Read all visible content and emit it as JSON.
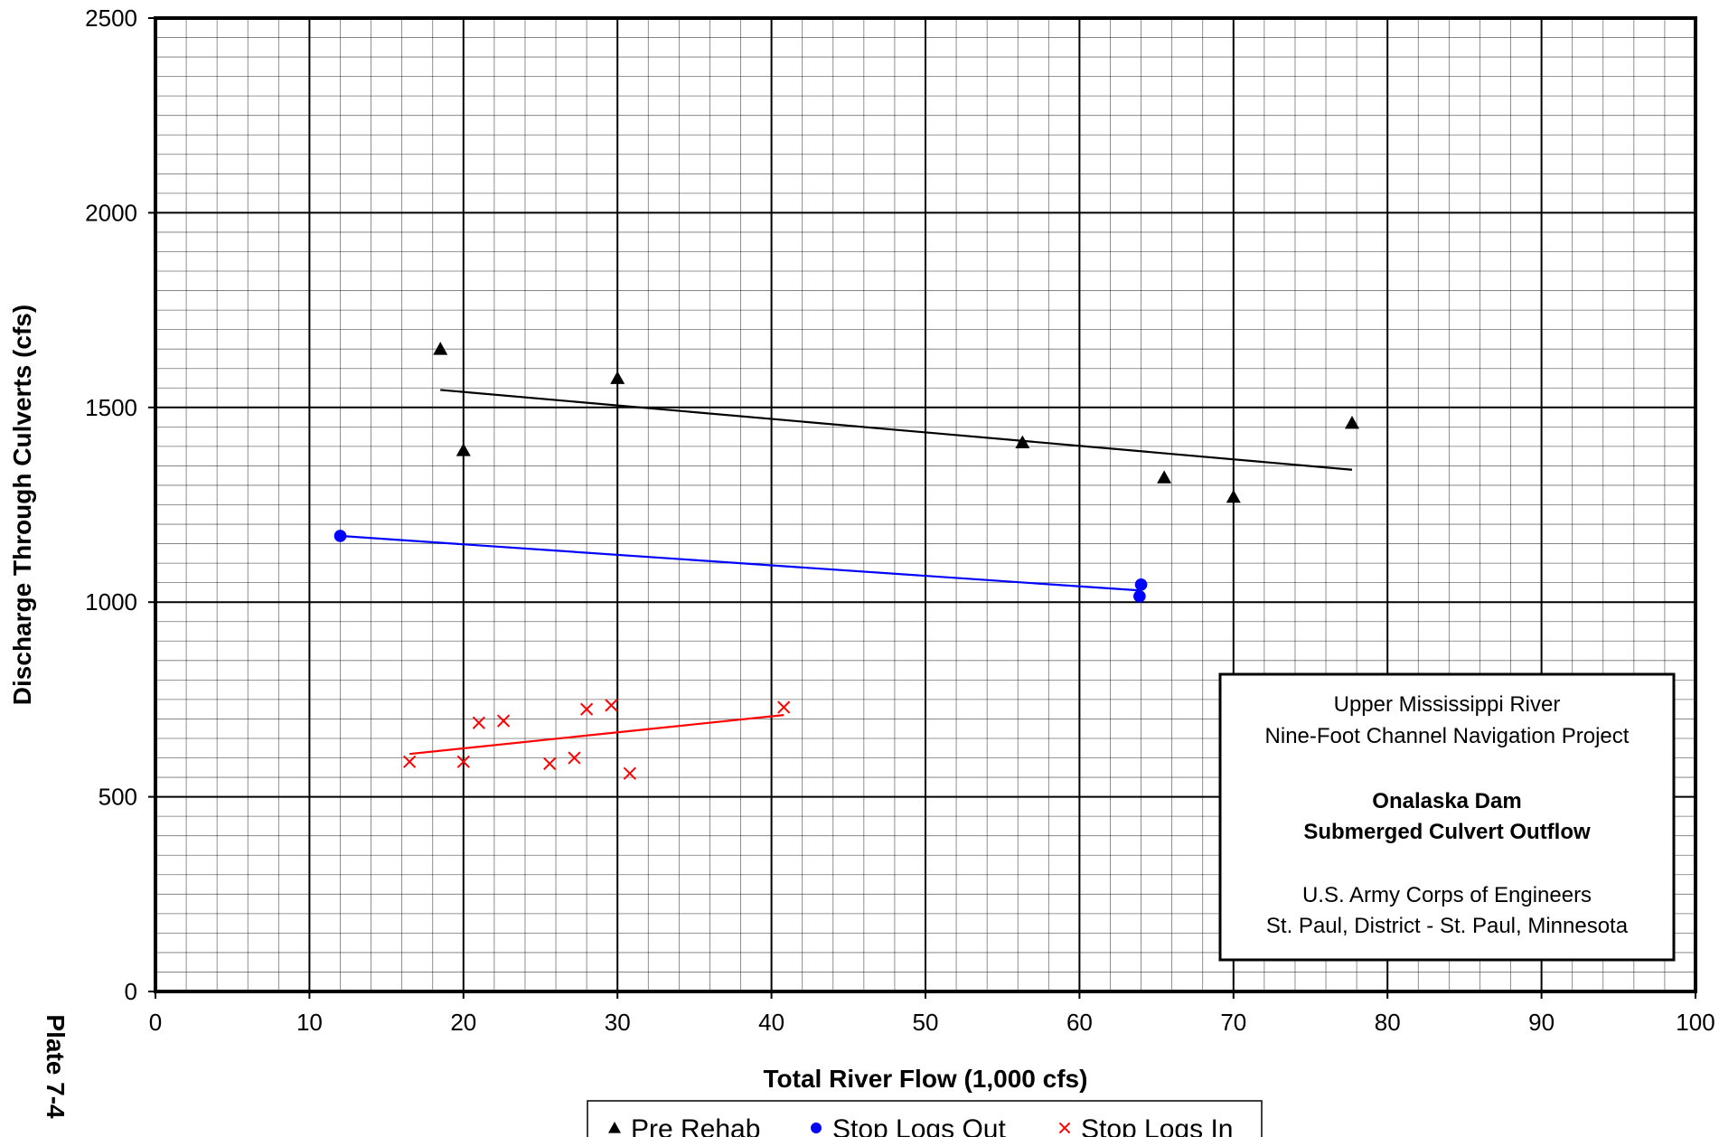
{
  "chart_data": {
    "type": "scatter",
    "xlabel": "Total River Flow  (1,000 cfs)",
    "ylabel": "Discharge Through Culverts (cfs)",
    "xlim": [
      0,
      100
    ],
    "ylim": [
      0,
      2500
    ],
    "x_ticks": [
      0,
      10,
      20,
      30,
      40,
      50,
      60,
      70,
      80,
      90,
      100
    ],
    "y_ticks": [
      0,
      500,
      1000,
      1500,
      2000,
      2500
    ],
    "grid": "major every 10 x / 500 y, minor every 2 x / 50 y",
    "legend_position": "bottom",
    "series": [
      {
        "name": "Pre Rehab",
        "marker": "triangle",
        "color": "#000000",
        "points": [
          [
            18.5,
            1650
          ],
          [
            20,
            1390
          ],
          [
            30,
            1575
          ],
          [
            56.3,
            1410
          ],
          [
            65.5,
            1320
          ],
          [
            70,
            1270
          ],
          [
            77.7,
            1460
          ]
        ],
        "trendline": [
          [
            18.5,
            1545
          ],
          [
            77.7,
            1340
          ]
        ]
      },
      {
        "name": "Stop Logs Out",
        "marker": "circle",
        "color": "#0000ff",
        "points": [
          [
            12,
            1170
          ],
          [
            64,
            1045
          ],
          [
            63.9,
            1015
          ]
        ],
        "trendline": [
          [
            12,
            1170
          ],
          [
            63.9,
            1030
          ]
        ]
      },
      {
        "name": "Stop Logs In",
        "marker": "x",
        "color": "#ff0000",
        "points": [
          [
            16.5,
            590
          ],
          [
            20,
            590
          ],
          [
            21,
            690
          ],
          [
            22.6,
            695
          ],
          [
            25.6,
            585
          ],
          [
            27.2,
            600
          ],
          [
            28,
            725
          ],
          [
            29.6,
            735
          ],
          [
            30.8,
            560
          ],
          [
            40.8,
            730
          ]
        ],
        "trendline": [
          [
            16.5,
            610
          ],
          [
            40.8,
            710
          ]
        ]
      }
    ],
    "annotation": {
      "lines": [
        "Upper Mississippi River",
        "Nine-Foot Channel Navigation Project",
        "",
        "Onalaska Dam",
        "Submerged Culvert Outflow",
        "",
        "U.S. Army Corps of Engineers",
        "St. Paul, District  -  St. Paul, Minnesota"
      ],
      "bold_lines": [
        3,
        4
      ]
    },
    "side_label": "Plate 7-4"
  }
}
